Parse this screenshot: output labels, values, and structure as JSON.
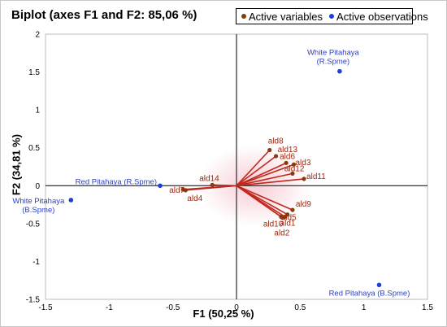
{
  "chart_data": {
    "type": "scatter",
    "title": "Biplot (axes F1 and F2: 85,06 %)",
    "xlabel": "F1 (50,25 %)",
    "ylabel": "F2 (34,81 %)",
    "xlim": [
      -1.5,
      1.5
    ],
    "ylim": [
      -1.5,
      2
    ],
    "x_ticks": [
      -1.5,
      -1,
      -0.5,
      0,
      0.5,
      1,
      1.5
    ],
    "y_ticks": [
      -1.5,
      -1,
      -0.5,
      0,
      0.5,
      1,
      1.5,
      2
    ],
    "x_tick_labels": [
      "-1.5",
      "-1",
      "-0.5",
      "0",
      "0.5",
      "1",
      "1.5"
    ],
    "y_tick_labels": [
      "-1.5",
      "-1",
      "-0.5",
      "0",
      "0.5",
      "1",
      "1.5",
      "2"
    ],
    "grid": false,
    "legend_position": "top-right",
    "series": [
      {
        "name": "Active variables",
        "color": "#8b3a0f",
        "points": [
          {
            "label": "ald8",
            "x": 0.26,
            "y": 0.47
          },
          {
            "label": "ald13",
            "x": 0.31,
            "y": 0.39
          },
          {
            "label": "ald6",
            "x": 0.39,
            "y": 0.3
          },
          {
            "label": "ald3",
            "x": 0.45,
            "y": 0.28
          },
          {
            "label": "ald12",
            "x": 0.44,
            "y": 0.16
          },
          {
            "label": "ald11",
            "x": 0.53,
            "y": 0.09
          },
          {
            "label": "ald9",
            "x": 0.44,
            "y": -0.32
          },
          {
            "label": "ald5",
            "x": 0.4,
            "y": -0.38
          },
          {
            "label": "ald1",
            "x": 0.38,
            "y": -0.41
          },
          {
            "label": "ald10",
            "x": 0.35,
            "y": -0.41
          },
          {
            "label": "ald2",
            "x": 0.36,
            "y": -0.42
          },
          {
            "label": "ald14",
            "x": -0.19,
            "y": 0.01
          },
          {
            "label": "ald7",
            "x": -0.42,
            "y": -0.05
          },
          {
            "label": "ald4",
            "x": -0.4,
            "y": -0.06
          }
        ]
      },
      {
        "name": "Active observations",
        "color": "#1f3fd6",
        "points": [
          {
            "label": "White Pitahaya (R.Spme)",
            "x": 0.81,
            "y": 1.51
          },
          {
            "label": "Red Pitahaya (R.Spme)",
            "x": -0.6,
            "y": 0.0
          },
          {
            "label": "White Pitahaya (B.Spme)",
            "x": -1.3,
            "y": -0.19
          },
          {
            "label": "Red Pitahaya (B.Spme)",
            "x": 1.12,
            "y": -1.31
          }
        ]
      }
    ]
  }
}
